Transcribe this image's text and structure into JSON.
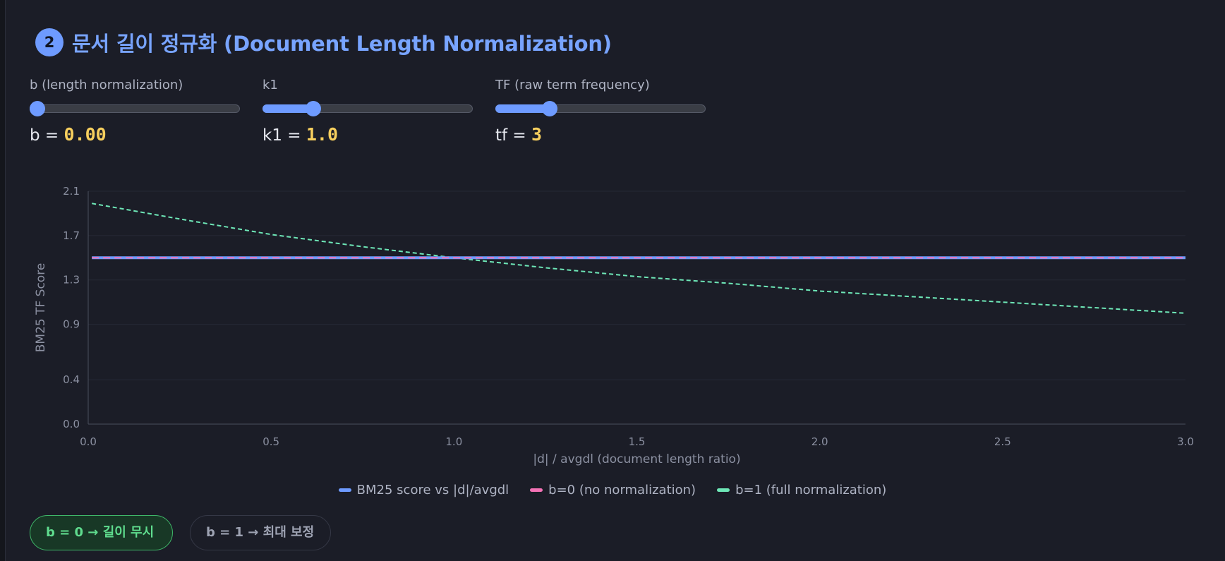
{
  "section": {
    "number": "2",
    "title": "문서 길이 정규화 (Document Length Normalization)"
  },
  "controls": [
    {
      "label": "b (length normalization)",
      "prefix": "b = ",
      "value": "0.00",
      "fraction": 0.0
    },
    {
      "label": "k1",
      "prefix": "k1 = ",
      "value": "1.0",
      "fraction": 0.22
    },
    {
      "label": "TF (raw term frequency)",
      "prefix": "tf = ",
      "value": "3",
      "fraction": 0.24
    }
  ],
  "buttons": {
    "b0": "b = 0 → 길이 무시",
    "b1": "b = 1 → 최대 보정"
  },
  "colors": {
    "accent": "#6e9bff",
    "pink": "#f472b6",
    "green": "#6ee7b7",
    "value": "#f7cf5e"
  },
  "chart_data": {
    "type": "line",
    "xlabel": "|d| / avgdl (document length ratio)",
    "ylabel": "BM25 TF Score",
    "xlim": [
      0,
      3
    ],
    "ylim": [
      0,
      2.1
    ],
    "x_ticks": [
      "0.0",
      "0.5",
      "1.0",
      "1.5",
      "2.0",
      "2.5",
      "3.0"
    ],
    "y_ticks": [
      "0.0",
      "0.4",
      "0.9",
      "1.3",
      "1.7",
      "2.1"
    ],
    "grid": true,
    "legend_position": "bottom",
    "series": [
      {
        "name": "BM25 score vs |d|/avgdl",
        "color": "#6e9bff",
        "style": "solid",
        "x": [
          0.01,
          0.5,
          1.0,
          1.5,
          2.0,
          2.5,
          3.0
        ],
        "values": [
          1.5,
          1.5,
          1.5,
          1.5,
          1.5,
          1.5,
          1.5
        ]
      },
      {
        "name": "b=0 (no normalization)",
        "color": "#f472b6",
        "style": "dashed",
        "x": [
          0.01,
          0.5,
          1.0,
          1.5,
          2.0,
          2.5,
          3.0
        ],
        "values": [
          1.5,
          1.5,
          1.5,
          1.5,
          1.5,
          1.5,
          1.5
        ]
      },
      {
        "name": "b=1 (full normalization)",
        "color": "#6ee7b7",
        "style": "dashed",
        "x": [
          0.01,
          0.25,
          0.5,
          0.75,
          1.0,
          1.25,
          1.5,
          1.75,
          2.0,
          2.25,
          2.5,
          2.75,
          3.0
        ],
        "values": [
          1.99,
          1.85,
          1.71,
          1.6,
          1.5,
          1.41,
          1.33,
          1.27,
          1.2,
          1.15,
          1.1,
          1.05,
          1.0
        ]
      }
    ]
  }
}
